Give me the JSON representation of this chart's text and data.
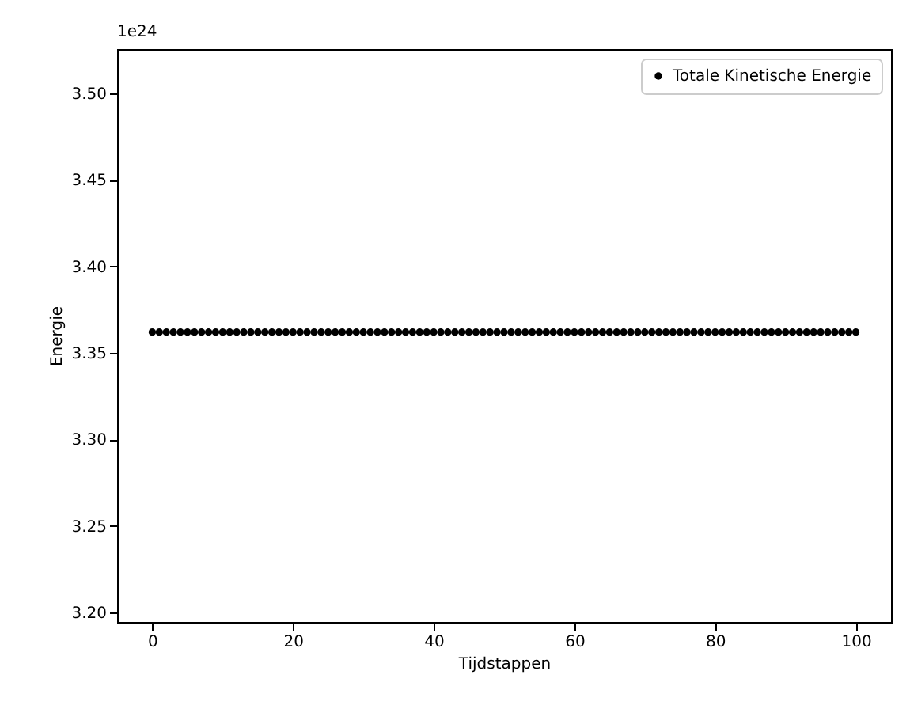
{
  "chart_data": {
    "type": "scatter",
    "xlabel": "Tijdstappen",
    "ylabel": "Energie",
    "annotations": [
      "1e24"
    ],
    "x": [
      0,
      1,
      2,
      3,
      4,
      5,
      6,
      7,
      8,
      9,
      10,
      11,
      12,
      13,
      14,
      15,
      16,
      17,
      18,
      19,
      20,
      21,
      22,
      23,
      24,
      25,
      26,
      27,
      28,
      29,
      30,
      31,
      32,
      33,
      34,
      35,
      36,
      37,
      38,
      39,
      40,
      41,
      42,
      43,
      44,
      45,
      46,
      47,
      48,
      49,
      50,
      51,
      52,
      53,
      54,
      55,
      56,
      57,
      58,
      59,
      60,
      61,
      62,
      63,
      64,
      65,
      66,
      67,
      68,
      69,
      70,
      71,
      72,
      73,
      74,
      75,
      76,
      77,
      78,
      79,
      80,
      81,
      82,
      83,
      84,
      85,
      86,
      87,
      88,
      89,
      90,
      91,
      92,
      93,
      94,
      95,
      96,
      97,
      98,
      99,
      100
    ],
    "series": [
      {
        "name": "Totale Kinetische Energie",
        "color": "#000000",
        "values": [
          3.362,
          3.362,
          3.362,
          3.362,
          3.362,
          3.362,
          3.362,
          3.362,
          3.362,
          3.362,
          3.362,
          3.362,
          3.362,
          3.362,
          3.362,
          3.362,
          3.362,
          3.362,
          3.362,
          3.362,
          3.362,
          3.362,
          3.362,
          3.362,
          3.362,
          3.362,
          3.362,
          3.362,
          3.362,
          3.362,
          3.362,
          3.362,
          3.362,
          3.362,
          3.362,
          3.362,
          3.362,
          3.362,
          3.362,
          3.362,
          3.362,
          3.362,
          3.362,
          3.362,
          3.362,
          3.362,
          3.362,
          3.362,
          3.362,
          3.362,
          3.362,
          3.362,
          3.362,
          3.362,
          3.362,
          3.362,
          3.362,
          3.362,
          3.362,
          3.362,
          3.362,
          3.362,
          3.362,
          3.362,
          3.362,
          3.362,
          3.362,
          3.362,
          3.362,
          3.362,
          3.362,
          3.362,
          3.362,
          3.362,
          3.362,
          3.362,
          3.362,
          3.362,
          3.362,
          3.362,
          3.362,
          3.362,
          3.362,
          3.362,
          3.362,
          3.362,
          3.362,
          3.362,
          3.362,
          3.362,
          3.362,
          3.362,
          3.362,
          3.362,
          3.362,
          3.362,
          3.362,
          3.362,
          3.362,
          3.362,
          3.362
        ]
      }
    ],
    "xlim": [
      -5,
      105
    ],
    "xticks": [
      0,
      20,
      40,
      60,
      80,
      100
    ],
    "ylim": [
      3.1945,
      3.5256
    ],
    "yticks": [
      {
        "value": 3.2,
        "label": "3.20"
      },
      {
        "value": 3.25,
        "label": "3.25"
      },
      {
        "value": 3.3,
        "label": "3.30"
      },
      {
        "value": 3.35,
        "label": "3.35"
      },
      {
        "value": 3.4,
        "label": "3.40"
      },
      {
        "value": 3.45,
        "label": "3.45"
      },
      {
        "value": 3.5,
        "label": "3.50"
      }
    ],
    "grid": false,
    "legend": "top right",
    "marker": "circle"
  }
}
